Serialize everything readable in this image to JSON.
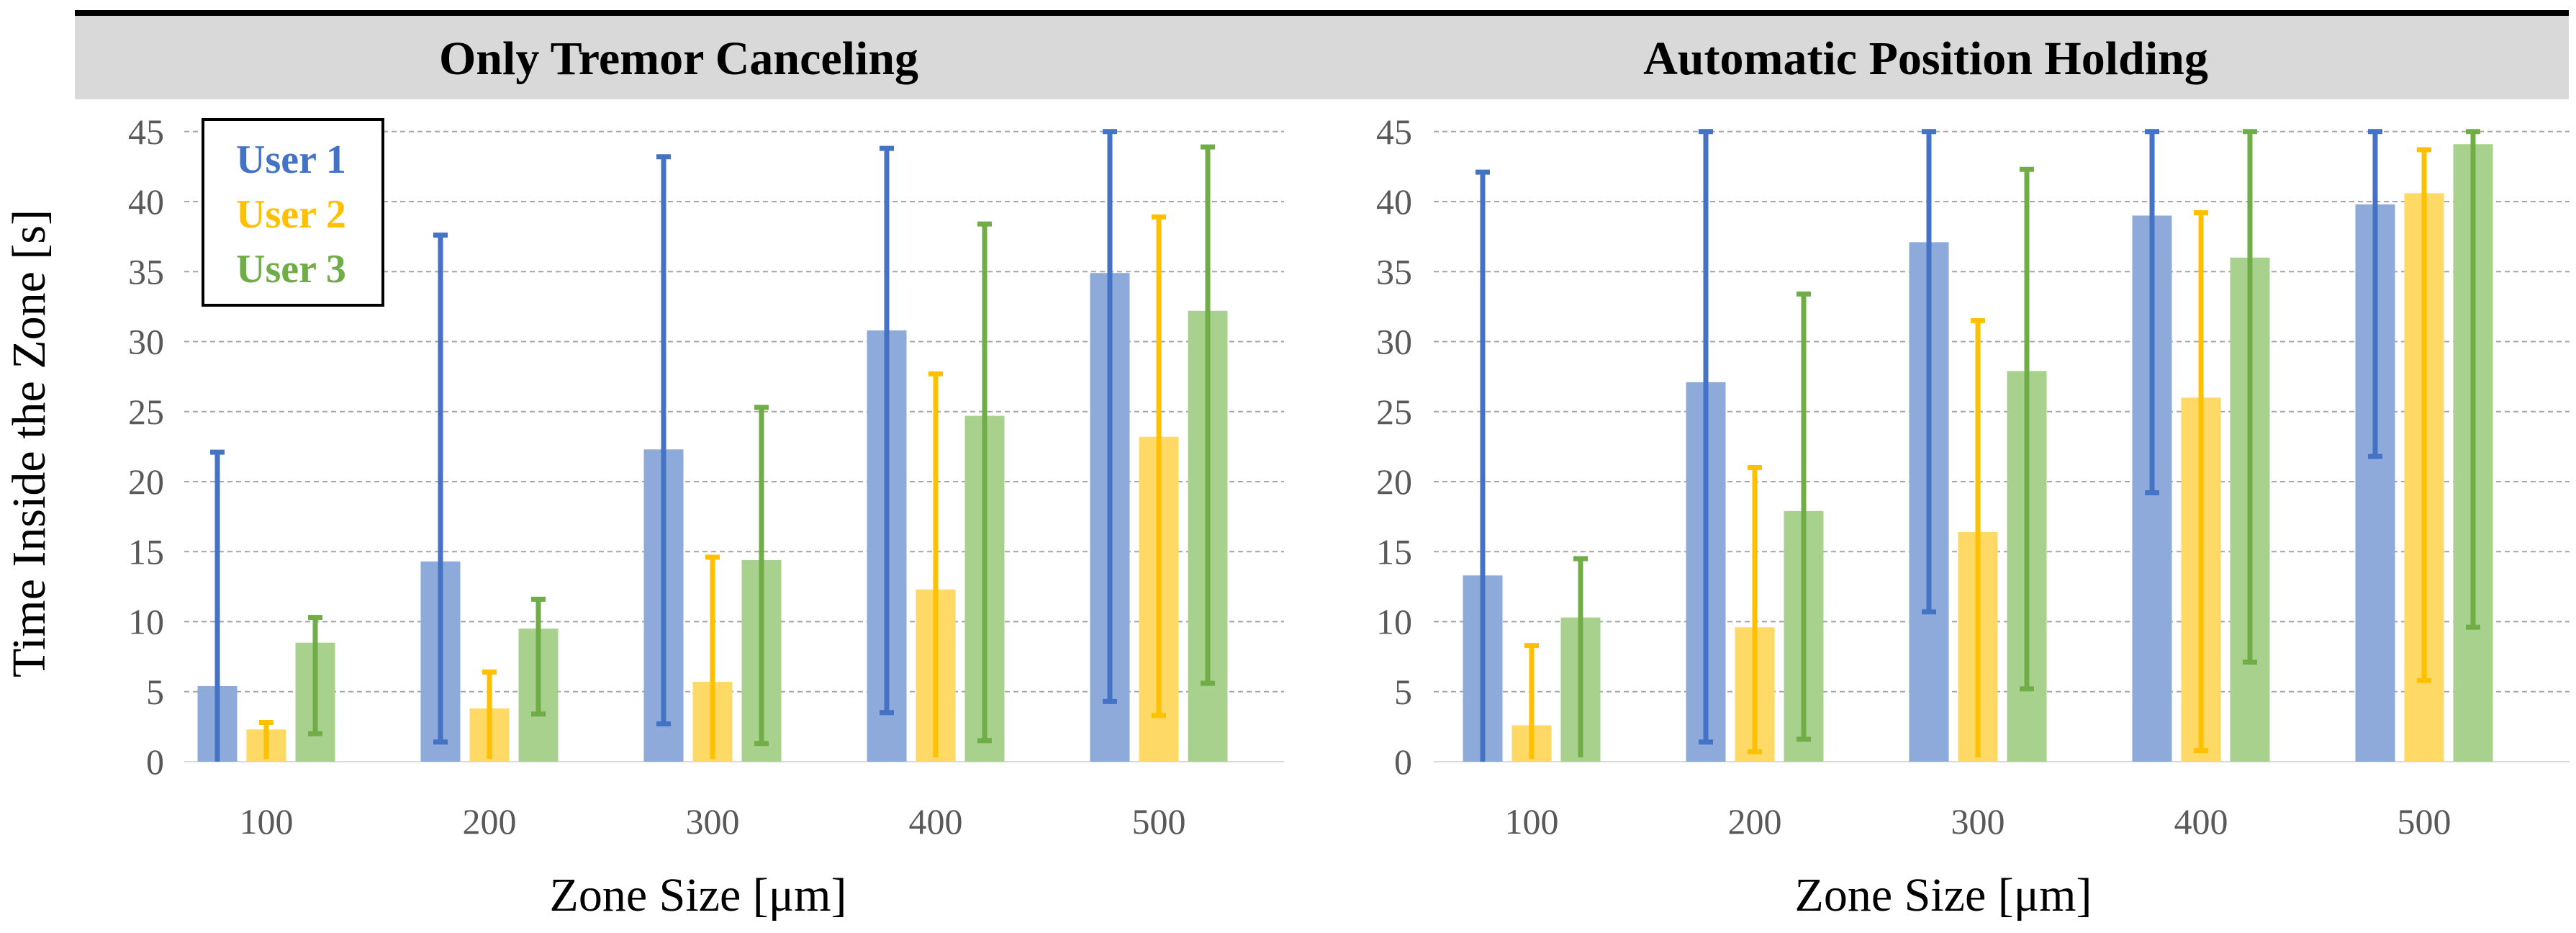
{
  "y_axis_label": "Time Inside the Zone [s]",
  "legend": [
    {
      "label": "User 1",
      "color": "#4472c4"
    },
    {
      "label": "User 2",
      "color": "#ffc000"
    },
    {
      "label": "User 3",
      "color": "#70ad47"
    }
  ],
  "colors": {
    "bar_fills": [
      "#8eaadb",
      "#ffd966",
      "#a9d18e"
    ],
    "error_bars": [
      "#4472c4",
      "#ffc000",
      "#70ad47"
    ],
    "header_bg": "#d9d9d9",
    "gridline": "#a6a6a6"
  },
  "panels": [
    {
      "title": "Only Tremor Canceling",
      "xlabel": "Zone Size [μm]"
    },
    {
      "title": "Automatic Position Holding",
      "xlabel": "Zone Size [μm]"
    }
  ],
  "chart_data": [
    {
      "type": "bar",
      "title": "Only Tremor Canceling",
      "xlabel": "Zone Size [μm]",
      "ylabel": "Time Inside the Zone [s]",
      "ylim": [
        0,
        45
      ],
      "yticks": [
        0,
        5,
        10,
        15,
        20,
        25,
        30,
        35,
        40,
        45
      ],
      "grid": true,
      "legend_position": "top-left",
      "categories": [
        "100",
        "200",
        "300",
        "400",
        "500"
      ],
      "series": [
        {
          "name": "User 1",
          "values": [
            5.4,
            14.3,
            22.3,
            30.8,
            34.9
          ],
          "err_low": [
            0,
            1.4,
            2.7,
            3.5,
            4.3
          ],
          "err_high": [
            22.1,
            37.6,
            43.2,
            43.8,
            45
          ]
        },
        {
          "name": "User 2",
          "values": [
            2.3,
            3.8,
            5.7,
            12.3,
            23.2
          ],
          "err_low": [
            0.2,
            0.2,
            0.2,
            0.3,
            3.3
          ],
          "err_high": [
            2.8,
            6.4,
            14.6,
            27.7,
            38.9
          ]
        },
        {
          "name": "User 3",
          "values": [
            8.5,
            9.5,
            14.4,
            24.7,
            32.2
          ],
          "err_low": [
            2.0,
            3.4,
            1.3,
            1.5,
            5.6
          ],
          "err_high": [
            10.3,
            11.6,
            25.3,
            38.4,
            43.9
          ]
        }
      ]
    },
    {
      "type": "bar",
      "title": "Automatic Position Holding",
      "xlabel": "Zone Size [μm]",
      "ylabel": "Time Inside the Zone [s]",
      "ylim": [
        0,
        45
      ],
      "yticks": [
        0,
        5,
        10,
        15,
        20,
        25,
        30,
        35,
        40,
        45
      ],
      "grid": true,
      "categories": [
        "100",
        "200",
        "300",
        "400",
        "500"
      ],
      "series": [
        {
          "name": "User 1",
          "values": [
            13.3,
            27.1,
            37.1,
            39.0,
            39.8
          ],
          "err_low": [
            0,
            1.4,
            10.7,
            19.2,
            21.8
          ],
          "err_high": [
            42.1,
            45,
            45,
            45,
            45
          ]
        },
        {
          "name": "User 2",
          "values": [
            2.6,
            9.6,
            16.4,
            26.0,
            40.6
          ],
          "err_low": [
            0.2,
            0.7,
            0.3,
            0.8,
            5.8
          ],
          "err_high": [
            8.3,
            21.0,
            31.5,
            39.2,
            43.7
          ]
        },
        {
          "name": "User 3",
          "values": [
            10.3,
            17.9,
            27.9,
            36.0,
            44.1
          ],
          "err_low": [
            0.3,
            1.6,
            5.2,
            7.1,
            9.6
          ],
          "err_high": [
            14.5,
            33.4,
            42.3,
            45,
            45
          ]
        }
      ]
    }
  ]
}
